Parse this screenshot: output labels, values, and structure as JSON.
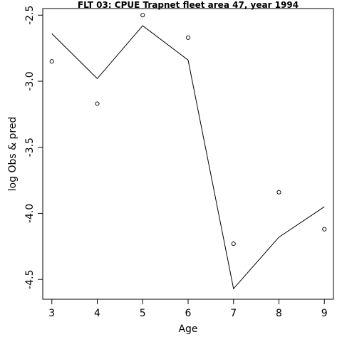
{
  "chart_data": {
    "type": "line",
    "title": "FLT 03: CPUE Trapnet fleet area 47, year 1994",
    "xlabel": "Age",
    "ylabel": "log Obs & pred",
    "xlim": [
      2.8,
      9.2
    ],
    "ylim": [
      -4.65,
      -2.45
    ],
    "xticks": [
      3,
      4,
      5,
      6,
      7,
      8,
      9
    ],
    "yticks": [
      -2.5,
      -3.0,
      -3.5,
      -4.0,
      -4.5
    ],
    "ytick_labels": [
      "-2.5",
      "-3.0",
      "-3.5",
      "-4.0",
      "-4.5"
    ],
    "grid": false,
    "series": [
      {
        "role": "observed",
        "style": "points",
        "x": [
          3,
          4,
          5,
          6,
          7,
          8,
          9
        ],
        "y": [
          -2.85,
          -3.17,
          -2.5,
          -2.67,
          -4.23,
          -3.84,
          -4.12
        ]
      },
      {
        "role": "predicted",
        "style": "line",
        "x": [
          3,
          4,
          5,
          6,
          7,
          8,
          9
        ],
        "y": [
          -2.64,
          -2.98,
          -2.58,
          -2.84,
          -4.57,
          -4.18,
          -3.95
        ]
      }
    ]
  }
}
